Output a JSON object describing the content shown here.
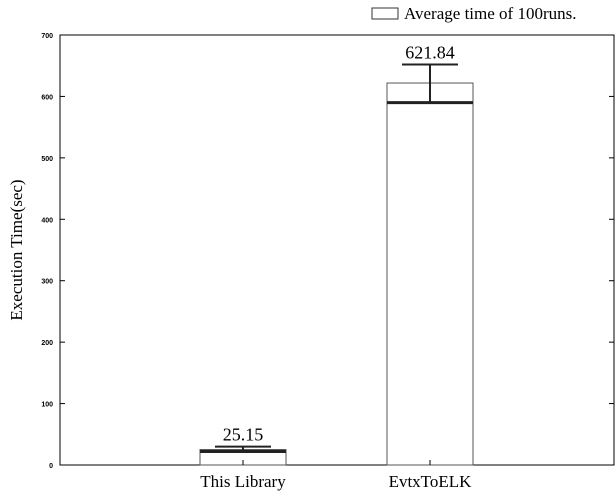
{
  "chart_data": {
    "type": "bar",
    "title": "",
    "xlabel": "",
    "ylabel": "Execution Time(sec)",
    "categories": [
      "This Library",
      "EvtxToELK"
    ],
    "series": [
      {
        "name": "Average time of 100runs.",
        "values": [
          25.15,
          621.84
        ],
        "error_low": [
          22,
          590
        ],
        "error_high": [
          30,
          652
        ],
        "value_labels": [
          "25.15",
          "621.84"
        ]
      }
    ],
    "ylim": [
      0,
      700
    ],
    "yticks": [
      0,
      100,
      200,
      300,
      400,
      500,
      600,
      700
    ],
    "ytick_labels": [
      "0",
      "100",
      "200",
      "300",
      "400",
      "500",
      "600",
      "700"
    ],
    "grid": false,
    "legend_position": "top-right",
    "colors": {
      "bar_fill": "#ffffff",
      "bar_stroke": "#555555",
      "axis": "#000000",
      "error": "#222222"
    }
  }
}
